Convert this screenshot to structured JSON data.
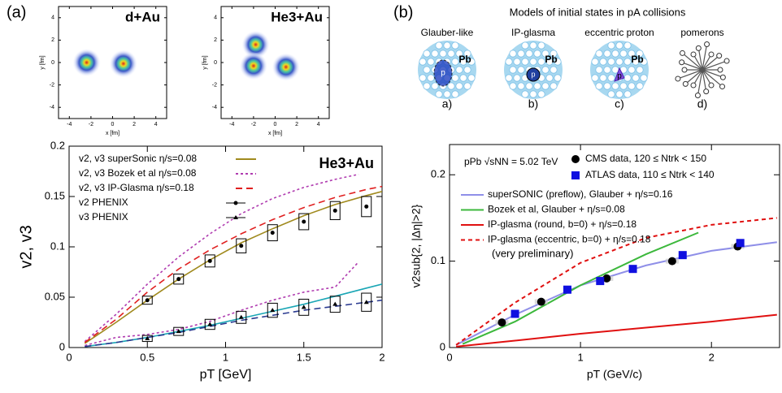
{
  "panel_labels": [
    "(a)",
    "(b)"
  ],
  "models": {
    "title": "Models of initial states in pA collisions",
    "items": [
      {
        "name": "Glauber-like",
        "label": "a)"
      },
      {
        "name": "IP-glasma",
        "label": "b)"
      },
      {
        "name": "eccentric proton",
        "label": "c)"
      },
      {
        "name": "pomerons",
        "label": "d)"
      }
    ],
    "nucleus": "Pb",
    "proton": "p"
  },
  "chart_data": [
    {
      "type": "density",
      "title": "d+Au",
      "xlabel": "x [fm]",
      "ylabel": "y [fm]",
      "x": [
        -2.4,
        1.0
      ],
      "y": [
        0.0,
        -0.1
      ],
      "xlim": [
        -5,
        5
      ],
      "ylim": [
        -5,
        5
      ],
      "xticks": [
        -4,
        -2,
        0,
        2,
        4
      ],
      "yticks": [
        -4,
        -2,
        0,
        2,
        4
      ]
    },
    {
      "type": "density",
      "title": "He3+Au",
      "xlabel": "x [fm]",
      "ylabel": "y [fm]",
      "x": [
        -1.8,
        -2.0,
        1.0
      ],
      "y": [
        1.6,
        -0.3,
        -0.4
      ],
      "xlim": [
        -5,
        5
      ],
      "ylim": [
        -5,
        5
      ],
      "xticks": [
        -4,
        -2,
        0,
        2,
        4
      ],
      "yticks": [
        -4,
        -2,
        0,
        2,
        4
      ]
    },
    {
      "type": "line",
      "annotation": "He3+Au",
      "xlabel": "pT [GeV]",
      "ylabel": "v2, v3",
      "xlim": [
        0,
        2
      ],
      "ylim": [
        0,
        0.2
      ],
      "xticks": [
        0,
        0.5,
        1,
        1.5,
        2
      ],
      "yticks": [
        0,
        0.05,
        0.1,
        0.15,
        0.2
      ],
      "models": [
        {
          "name": "v2, v3 superSonic η/s=0.08",
          "color": "#a08a1e",
          "dash": "none",
          "color_v3": "#1aa6b5",
          "x": [
            0.1,
            0.3,
            0.5,
            0.7,
            0.9,
            1.1,
            1.3,
            1.5,
            1.7,
            1.9,
            2.0
          ],
          "v2": [
            0.004,
            0.025,
            0.047,
            0.068,
            0.087,
            0.104,
            0.118,
            0.131,
            0.142,
            0.151,
            0.155
          ],
          "v3": [
            0.001,
            0.005,
            0.01,
            0.016,
            0.022,
            0.029,
            0.036,
            0.043,
            0.051,
            0.059,
            0.063
          ]
        },
        {
          "name": "v2, v3 Bozek et al η/s=0.08",
          "color": "#b03cb0",
          "dash": "3 3",
          "color_v3": "#b03cb0",
          "x": [
            0.1,
            0.3,
            0.5,
            0.7,
            0.9,
            1.1,
            1.3,
            1.5,
            1.7,
            1.85
          ],
          "v2": [
            0.006,
            0.033,
            0.063,
            0.09,
            0.113,
            0.133,
            0.148,
            0.159,
            0.167,
            0.172
          ],
          "v3": [
            0.002,
            0.01,
            0.013,
            0.018,
            0.026,
            0.037,
            0.047,
            0.055,
            0.06,
            0.085
          ]
        },
        {
          "name": "v2, v3 IP-Glasma η/s=0.18",
          "color": "#e02020",
          "dash": "8 5",
          "color_v3": "#2a3a90",
          "x": [
            0.1,
            0.3,
            0.5,
            0.7,
            0.9,
            1.1,
            1.3,
            1.5,
            1.7,
            1.9,
            2.0
          ],
          "v2": [
            0.005,
            0.028,
            0.055,
            0.078,
            0.097,
            0.113,
            0.127,
            0.139,
            0.149,
            0.157,
            0.16
          ],
          "v3": [
            0.001,
            0.005,
            0.01,
            0.015,
            0.021,
            0.027,
            0.032,
            0.037,
            0.041,
            0.045,
            0.047
          ]
        }
      ],
      "series": [
        {
          "name": "v2 PHENIX",
          "color": "#000000",
          "marker": "circle",
          "x": [
            0.5,
            0.7,
            0.9,
            1.1,
            1.3,
            1.5,
            1.7,
            1.9
          ],
          "values": [
            0.047,
            0.068,
            0.086,
            0.101,
            0.114,
            0.125,
            0.136,
            0.14
          ],
          "errors": [
            0.004,
            0.005,
            0.006,
            0.007,
            0.008,
            0.008,
            0.009,
            0.01
          ]
        },
        {
          "name": "v3 PHENIX",
          "color": "#000000",
          "marker": "triangle",
          "x": [
            0.5,
            0.7,
            0.9,
            1.1,
            1.3,
            1.5,
            1.7,
            1.9
          ],
          "values": [
            0.009,
            0.016,
            0.023,
            0.03,
            0.037,
            0.04,
            0.043,
            0.045
          ],
          "errors": [
            0.003,
            0.004,
            0.005,
            0.006,
            0.007,
            0.008,
            0.008,
            0.009
          ]
        }
      ]
    },
    {
      "type": "line",
      "annotation": "pPb √sNN = 5.02 TeV",
      "note": "(very preliminary)",
      "xlabel": "pT (GeV/c)",
      "ylabel": "v2sub{2, |Δη|>2}",
      "xlim": [
        0,
        2.52
      ],
      "ylim": [
        0,
        0.235
      ],
      "xticks": [
        0,
        1,
        2
      ],
      "yticks": [
        0,
        0.1,
        0.2
      ],
      "models": [
        {
          "name": "superSONIC (preflow), Glauber + η/s=0.16",
          "color": "#8f8fe8",
          "dash": "none",
          "x": [
            0.05,
            0.5,
            1.0,
            1.5,
            2.0,
            2.5
          ],
          "values": [
            0.003,
            0.038,
            0.072,
            0.095,
            0.112,
            0.122
          ]
        },
        {
          "name": "Bozek et al, Glauber + η/s=0.08",
          "color": "#3cb83c",
          "dash": "none",
          "x": [
            0.1,
            0.5,
            1.0,
            1.5,
            1.9
          ],
          "values": [
            0.004,
            0.03,
            0.072,
            0.108,
            0.133
          ]
        },
        {
          "name": "IP-glasma (round, b=0) + η/s=0.18",
          "color": "#e01010",
          "dash": "none",
          "x": [
            0.05,
            0.5,
            1.0,
            1.5,
            2.0,
            2.5
          ],
          "values": [
            0.001,
            0.008,
            0.016,
            0.023,
            0.03,
            0.038
          ]
        },
        {
          "name": "IP-glasma (eccentric, b=0) + η/s=0.18",
          "color": "#e01010",
          "dash": "5 4",
          "x": [
            0.05,
            0.5,
            1.0,
            1.5,
            2.0,
            2.5
          ],
          "values": [
            0.003,
            0.052,
            0.098,
            0.127,
            0.142,
            0.15
          ]
        }
      ],
      "series": [
        {
          "name": "CMS data, 120 ≤ Ntrk < 150",
          "color": "#000000",
          "marker": "circle",
          "x": [
            0.4,
            0.7,
            1.2,
            1.7,
            2.2
          ],
          "values": [
            0.029,
            0.053,
            0.08,
            0.1,
            0.117
          ]
        },
        {
          "name": "ATLAS data, 110 ≤ Ntrk < 140",
          "color": "#1010e0",
          "marker": "square",
          "x": [
            0.5,
            0.9,
            1.15,
            1.4,
            1.78,
            2.22
          ],
          "values": [
            0.039,
            0.067,
            0.077,
            0.091,
            0.107,
            0.121
          ]
        }
      ]
    }
  ]
}
